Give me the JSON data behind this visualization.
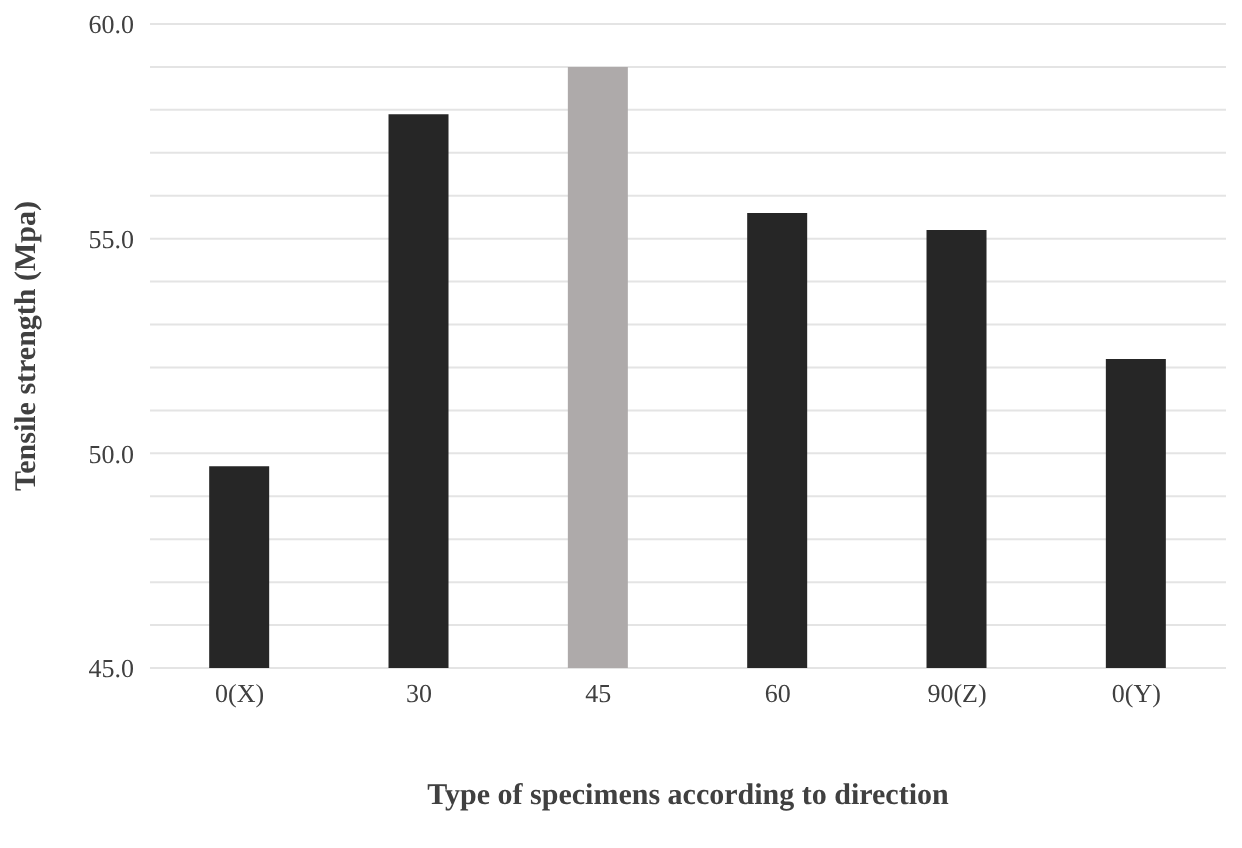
{
  "chart_data": {
    "type": "bar",
    "xlabel": "Type of specimens according to direction",
    "ylabel": "Tensile strength (Mpa)",
    "categories": [
      "0(X)",
      "30",
      "45",
      "60",
      "90(Z)",
      "0(Y)"
    ],
    "values": [
      49.7,
      57.9,
      59.0,
      55.6,
      55.2,
      52.2
    ],
    "colors": [
      "#262626",
      "#262626",
      "#aeaaaa",
      "#262626",
      "#262626",
      "#262626"
    ],
    "ylim": [
      45,
      60
    ],
    "yticks": [
      {
        "value": 45,
        "label": "45.0"
      },
      {
        "value": 46,
        "label": null
      },
      {
        "value": 47,
        "label": null
      },
      {
        "value": 48,
        "label": null
      },
      {
        "value": 49,
        "label": null
      },
      {
        "value": 50,
        "label": "50.0"
      },
      {
        "value": 51,
        "label": null
      },
      {
        "value": 52,
        "label": null
      },
      {
        "value": 53,
        "label": null
      },
      {
        "value": 54,
        "label": null
      },
      {
        "value": 55,
        "label": "55.0"
      },
      {
        "value": 56,
        "label": null
      },
      {
        "value": 57,
        "label": null
      },
      {
        "value": 58,
        "label": null
      },
      {
        "value": 59,
        "label": null
      },
      {
        "value": 60,
        "label": "60.0"
      }
    ],
    "grid": "y",
    "legend": false
  }
}
